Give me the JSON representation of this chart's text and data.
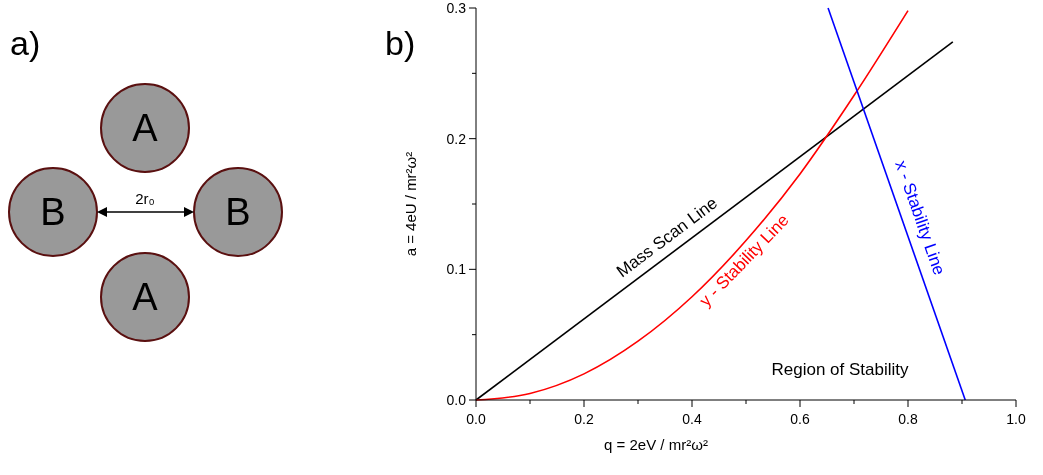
{
  "chart_data": [
    {
      "type": "other",
      "title": "a)",
      "annotations": [
        "A",
        "B",
        "2r₀",
        "B",
        "A"
      ]
    },
    {
      "type": "line",
      "title": "b)",
      "xlabel": "q = 2eV / mr²ω²",
      "ylabel": "a = 4eU / mr²ω²",
      "xlim": [
        0,
        1
      ],
      "ylim": [
        0,
        0.3
      ],
      "xticks": [
        {
          "value": 0,
          "label": "0.0"
        },
        {
          "value": 0.1,
          "label": null
        },
        {
          "value": 0.2,
          "label": "0.2"
        },
        {
          "value": 0.3,
          "label": null
        },
        {
          "value": 0.4,
          "label": "0.4"
        },
        {
          "value": 0.5,
          "label": null
        },
        {
          "value": 0.6,
          "label": "0.6"
        },
        {
          "value": 0.7,
          "label": null
        },
        {
          "value": 0.8,
          "label": "0.8"
        },
        {
          "value": 0.9,
          "label": null
        },
        {
          "value": 1,
          "label": "1.0"
        }
      ],
      "yticks": [
        {
          "value": 0,
          "label": "0.0"
        },
        {
          "value": 0.05,
          "label": null
        },
        {
          "value": 0.1,
          "label": "0.1"
        },
        {
          "value": 0.15,
          "label": null
        },
        {
          "value": 0.2,
          "label": "0.2"
        },
        {
          "value": 0.25,
          "label": null
        },
        {
          "value": 0.3,
          "label": "0.3"
        }
      ],
      "series": [
        {
          "name": "Mass Scan Line",
          "color": "#000000",
          "x": [
            0,
            0.883
          ],
          "values": [
            0,
            0.274
          ]
        },
        {
          "name": "y - Stability Line",
          "color": "#ff0000",
          "x": [
            0,
            0.1,
            0.2,
            0.3,
            0.4,
            0.5,
            0.6,
            0.7,
            0.8
          ],
          "values": [
            0,
            0.005,
            0.02,
            0.045,
            0.079,
            0.122,
            0.173,
            0.233,
            0.298
          ]
        },
        {
          "name": "x - Stability Line",
          "color": "#0000ff",
          "x": [
            0.652,
            0.906
          ],
          "values": [
            0.3,
            0
          ]
        }
      ],
      "annotations": [
        "Region of Stability"
      ]
    }
  ]
}
